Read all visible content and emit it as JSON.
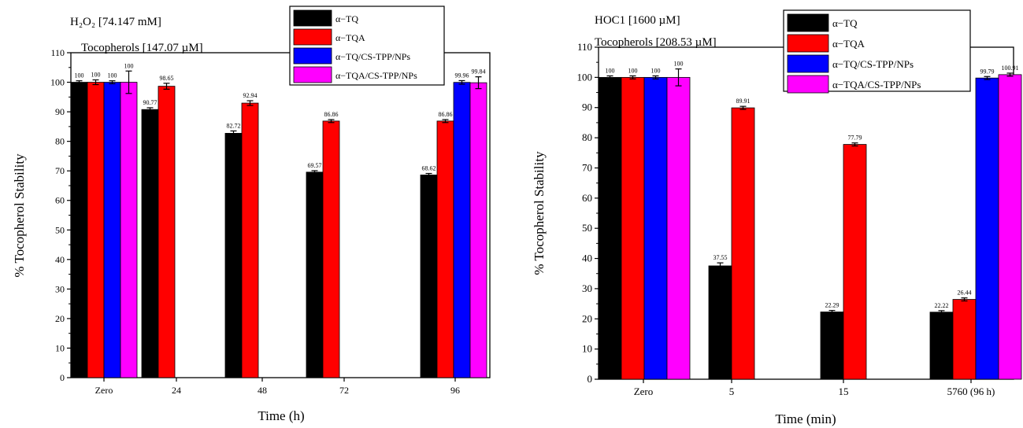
{
  "chart_data": [
    {
      "type": "bar",
      "annotations": [
        "H₂O₂ [74.147 mM]",
        "Tocopherols  [147.07 µM]"
      ],
      "xlabel": "Time (h)",
      "ylabel": "% Tocopherol Stability",
      "ylim": [
        0,
        110
      ],
      "yticks": [
        0,
        10,
        20,
        30,
        40,
        50,
        60,
        70,
        80,
        90,
        100,
        110
      ],
      "grid": false,
      "legend_position": "top-right",
      "categories": [
        "Zero",
        "24",
        "48",
        "72",
        "96"
      ],
      "series": [
        {
          "name": "α−TQ",
          "color": "#000000",
          "values": [
            100,
            90.77,
            82.72,
            69.57,
            68.62
          ],
          "errors": [
            0.5,
            0.6,
            0.8,
            0.5,
            0.5
          ],
          "labels": [
            "100",
            "90.77",
            "82.72",
            "69.57",
            "68.62"
          ]
        },
        {
          "name": "α−TQA",
          "color": "#ff0000",
          "values": [
            100,
            98.65,
            92.94,
            86.86,
            86.86
          ],
          "errors": [
            0.8,
            1.0,
            0.8,
            0.5,
            0.5
          ],
          "labels": [
            "100",
            "98.65",
            "92.94",
            "86.86",
            "86.86"
          ]
        },
        {
          "name": "α−TQ/CS-TPP/NPs",
          "color": "#0000ff",
          "values": [
            100,
            null,
            null,
            null,
            99.96
          ],
          "errors": [
            0.5,
            null,
            null,
            null,
            0.6
          ],
          "labels": [
            "100",
            "",
            "",
            "",
            "99.96"
          ]
        },
        {
          "name": "α−TQA/CS-TPP/NPs",
          "color": "#ff00ff",
          "values": [
            100,
            null,
            null,
            null,
            99.84
          ],
          "errors": [
            3.8,
            null,
            null,
            null,
            2.0
          ],
          "labels": [
            "100",
            "",
            "",
            "",
            "99.84"
          ]
        }
      ]
    },
    {
      "type": "bar",
      "annotations": [
        "HOC1 [1600 µM]",
        "Tocopherols [208.53 µM]"
      ],
      "xlabel": "Time (min)",
      "ylabel": "% Tocopherol Stability",
      "ylim": [
        0,
        110
      ],
      "yticks": [
        0,
        10,
        20,
        30,
        40,
        50,
        60,
        70,
        80,
        90,
        100,
        110
      ],
      "grid": false,
      "legend_position": "top-right",
      "categories": [
        "Zero",
        "5",
        "15",
        "5760 (96 h)"
      ],
      "series": [
        {
          "name": "α−TQ",
          "color": "#000000",
          "values": [
            100,
            37.55,
            22.29,
            22.22
          ],
          "errors": [
            0.5,
            1.0,
            0.5,
            0.5
          ],
          "labels": [
            "100",
            "37.55",
            "22.29",
            "22.22"
          ]
        },
        {
          "name": "α−TQA",
          "color": "#ff0000",
          "values": [
            100,
            89.91,
            77.79,
            26.44
          ],
          "errors": [
            0.5,
            0.5,
            0.5,
            0.5
          ],
          "labels": [
            "100",
            "89.91",
            "77.79",
            "26.44"
          ]
        },
        {
          "name": "α−TQ/CS-TPP/NPs",
          "color": "#0000ff",
          "values": [
            100,
            null,
            null,
            99.79
          ],
          "errors": [
            0.5,
            null,
            null,
            0.5
          ],
          "labels": [
            "100",
            "",
            "",
            "99.79"
          ]
        },
        {
          "name": "α−TQA/CS-TPP/NPs",
          "color": "#ff00ff",
          "values": [
            100,
            null,
            null,
            100.91
          ],
          "errors": [
            2.8,
            null,
            null,
            0.5
          ],
          "labels": [
            "100",
            "",
            "",
            "100.91"
          ]
        }
      ]
    }
  ]
}
